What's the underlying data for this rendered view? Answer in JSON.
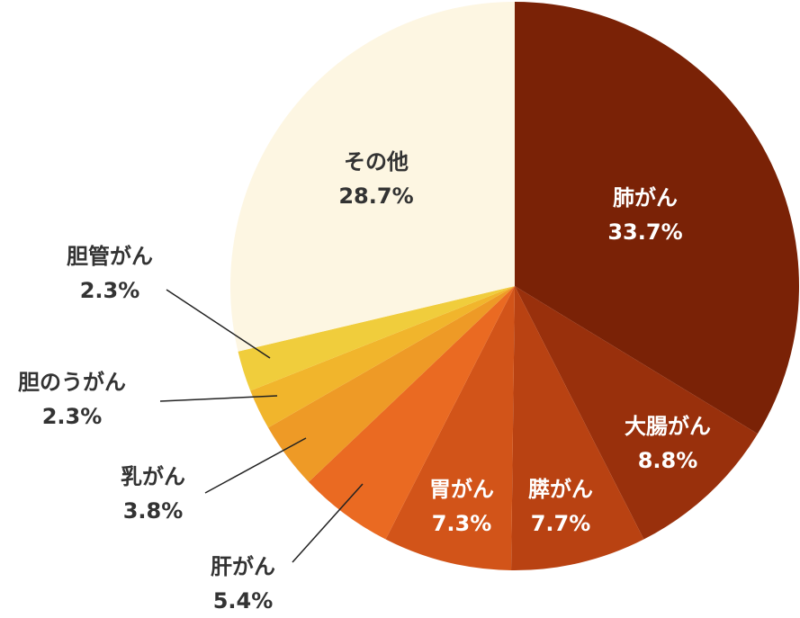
{
  "chart_data": {
    "type": "pie",
    "categories": [
      "肺がん",
      "大腸がん",
      "膵がん",
      "胃がん",
      "肝がん",
      "乳がん",
      "胆のうがん",
      "胆管がん",
      "その他"
    ],
    "values": [
      33.7,
      8.8,
      7.7,
      7.3,
      5.4,
      3.8,
      2.3,
      2.3,
      28.7
    ],
    "value_labels": [
      "33.7%",
      "8.8%",
      "7.7%",
      "7.3%",
      "5.4%",
      "3.8%",
      "2.3%",
      "2.3%",
      "28.7%"
    ],
    "colors": [
      "#7a2206",
      "#99300c",
      "#b94212",
      "#d25419",
      "#ea6a22",
      "#ee9a26",
      "#f1b52c",
      "#f0cd3c",
      "#fdf6e2"
    ]
  }
}
